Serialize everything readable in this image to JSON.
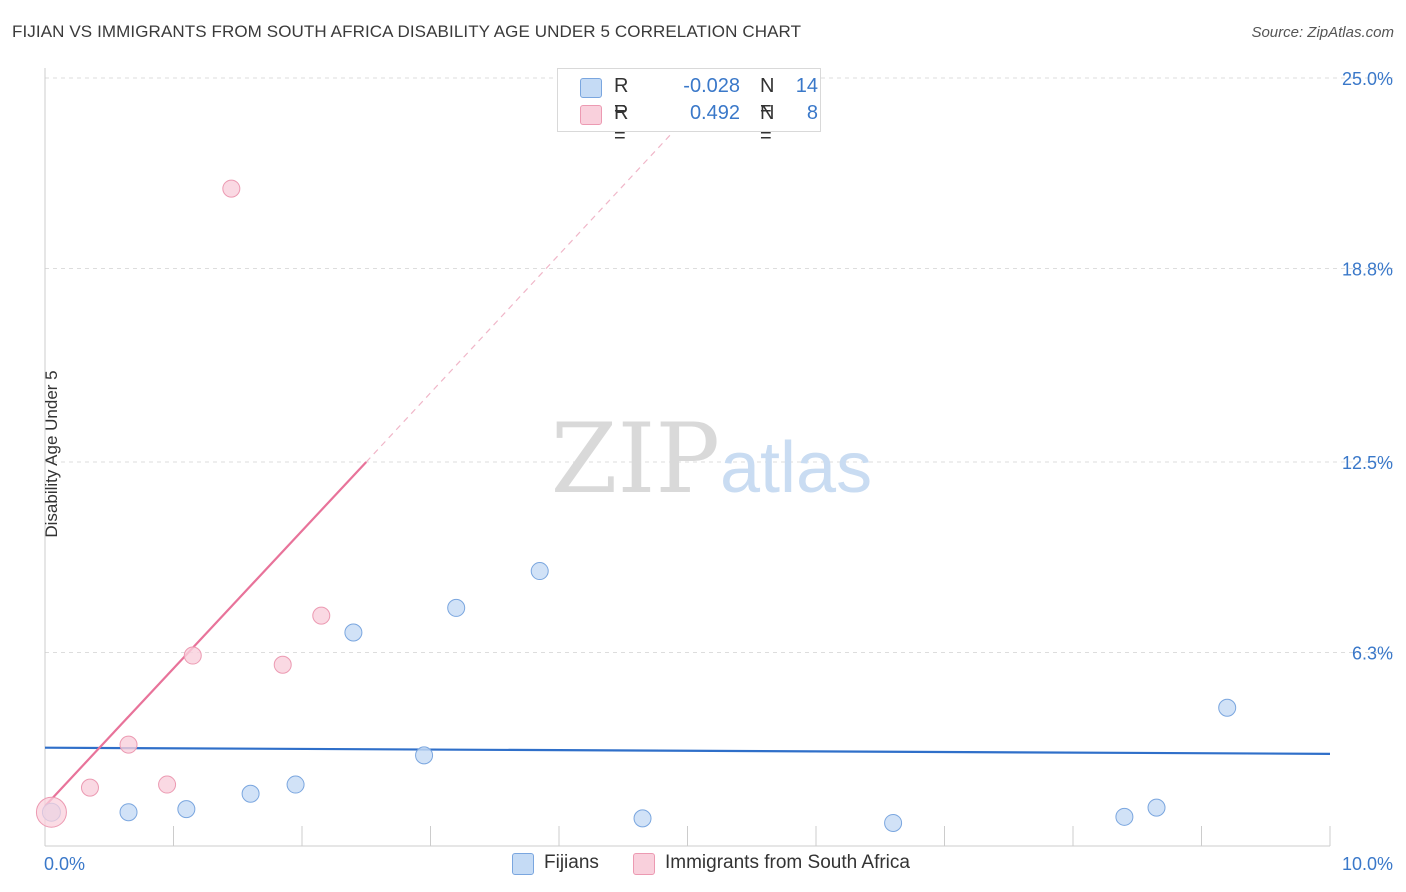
{
  "title": "FIJIAN VS IMMIGRANTS FROM SOUTH AFRICA DISABILITY AGE UNDER 5 CORRELATION CHART",
  "source": "Source: ZipAtlas.com",
  "watermark": {
    "zip": "ZIP",
    "atlas": "atlas"
  },
  "legend": {
    "r_label": "R =",
    "n_label": "N =",
    "rows": [
      {
        "r": "-0.028",
        "n": "14",
        "color": "#aecbf0",
        "border": "#7aa6df"
      },
      {
        "r": "0.492",
        "n": "8",
        "color": "#f8c3d2",
        "border": "#ec9ab2"
      }
    ]
  },
  "chart_data": {
    "type": "scatter",
    "title": "FIJIAN VS IMMIGRANTS FROM SOUTH AFRICA DISABILITY AGE UNDER 5 CORRELATION CHART",
    "ylabel": "Disability Age Under 5",
    "xlabel": "",
    "xlim": [
      0,
      10
    ],
    "ylim": [
      0,
      25.0
    ],
    "x_tick_labels": [
      "0.0%",
      "10.0%"
    ],
    "y_ticks": [
      6.3,
      12.5,
      18.8,
      25.0
    ],
    "y_tick_labels": [
      "6.3%",
      "12.5%",
      "18.8%",
      "25.0%"
    ],
    "series": [
      {
        "name": "Fijians",
        "color": "#7aa6df",
        "fill": "#c5dbf5",
        "points": [
          {
            "x": 0.05,
            "y": 1.1
          },
          {
            "x": 0.65,
            "y": 1.1
          },
          {
            "x": 1.1,
            "y": 1.2
          },
          {
            "x": 1.6,
            "y": 1.7
          },
          {
            "x": 1.95,
            "y": 2.0
          },
          {
            "x": 2.4,
            "y": 6.95
          },
          {
            "x": 2.95,
            "y": 2.95
          },
          {
            "x": 3.2,
            "y": 7.75
          },
          {
            "x": 3.85,
            "y": 8.95
          },
          {
            "x": 4.65,
            "y": 0.9
          },
          {
            "x": 6.6,
            "y": 0.75
          },
          {
            "x": 8.4,
            "y": 0.95
          },
          {
            "x": 8.65,
            "y": 1.25
          },
          {
            "x": 9.2,
            "y": 4.5
          }
        ],
        "trend": {
          "x": [
            0,
            10
          ],
          "y": [
            3.2,
            3.0
          ],
          "color": "#2f6fc9"
        }
      },
      {
        "name": "Immigrants from South Africa",
        "color": "#ec9ab2",
        "fill": "#f9d0dc",
        "points": [
          {
            "x": 0.05,
            "y": 1.1
          },
          {
            "x": 0.35,
            "y": 1.9
          },
          {
            "x": 0.65,
            "y": 3.3
          },
          {
            "x": 0.95,
            "y": 2.0
          },
          {
            "x": 1.15,
            "y": 6.2
          },
          {
            "x": 1.45,
            "y": 21.4
          },
          {
            "x": 1.85,
            "y": 5.9
          },
          {
            "x": 2.15,
            "y": 7.5
          }
        ],
        "trend": {
          "x": [
            0,
            2.5
          ],
          "y": [
            1.3,
            12.5
          ],
          "dash_to": {
            "x": 5.1,
            "y": 24.2
          },
          "color": "#e8739a"
        }
      }
    ]
  }
}
